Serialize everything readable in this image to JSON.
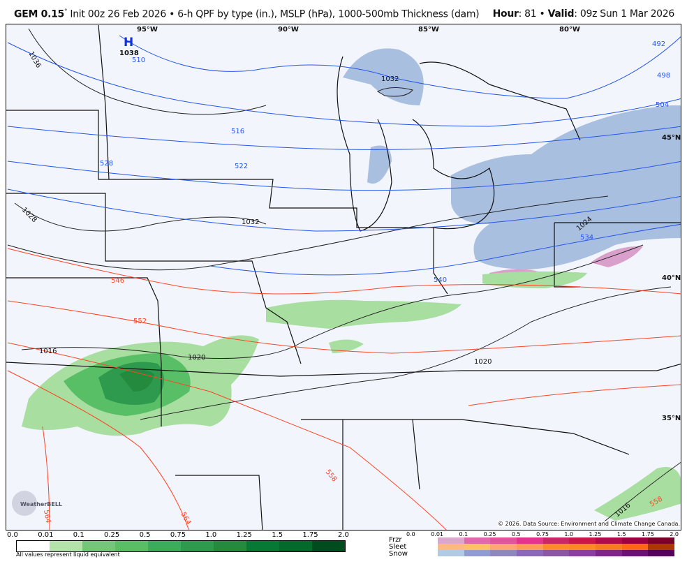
{
  "header": {
    "model": "GEM 0.15",
    "degree": "°",
    "description": "Init 00z 26 Feb 2026 • 6-h QPF by type (in.), MSLP (hPa), 1000-500mb Thickness (dam)",
    "hour_label": "Hour",
    "hour": ": 81 • ",
    "valid_label": "Valid",
    "valid": ": 09z Sun 1 Mar 2026"
  },
  "map": {
    "longitudes": [
      "95°W",
      "90°W",
      "85°W",
      "80°W"
    ],
    "latitudes": [
      "45°N",
      "40°N",
      "35°N"
    ],
    "high": {
      "symbol": "H",
      "value": "1038"
    },
    "isobars": [
      "1036",
      "1032",
      "1032",
      "1028",
      "1024",
      "1020",
      "1020",
      "1016",
      "1016"
    ],
    "thickness": [
      "492",
      "498",
      "504",
      "510",
      "516",
      "522",
      "528",
      "534",
      "540",
      "546",
      "552",
      "558",
      "558",
      "564",
      "564"
    ],
    "colors": {
      "isobar": "#111111",
      "thickness_cold": "#2255ee",
      "thickness_warm": "#ff4422",
      "rain": "#8fd48a",
      "snow": "#a9bfe0",
      "frzr": "#d9a0cc",
      "background": "#f3f5fd"
    },
    "copyright": "© 2026. Data Source: Environment and Climate Change Canada.",
    "logo": "WeatherBELL"
  },
  "qpf_legend": {
    "ticks": [
      "0.0",
      "0.01",
      "0.1",
      "0.25",
      "0.5",
      "0.75",
      "1.0",
      "1.25",
      "1.5",
      "1.75",
      "2.0"
    ],
    "colors": [
      "#ffffff",
      "#b3e3aa",
      "#74c77a",
      "#58bf67",
      "#3aac5b",
      "#2e9a4e",
      "#248a3d",
      "#067a34",
      "#046a2b",
      "#014c1e"
    ],
    "note": "All values represent liquid equivalent"
  },
  "type_legend": {
    "ticks": [
      "0.0",
      "0.01",
      "0.1",
      "0.25",
      "0.5",
      "0.75",
      "1.0",
      "1.25",
      "1.5",
      "1.75",
      "2.0"
    ],
    "rows": [
      {
        "label": "Frzr",
        "colors": [
          "#dba7cc",
          "#df68ae",
          "#e3529d",
          "#e6328f",
          "#cb2668",
          "#cc1549",
          "#b00b4c",
          "#9d0040",
          "#7b0029"
        ]
      },
      {
        "label": "Sleet",
        "colors": [
          "#fdb97f",
          "#fec166",
          "#fda578",
          "#fb9b57",
          "#fc8b2d",
          "#fd8926",
          "#f57c22",
          "#fe6717",
          "#ad3700"
        ]
      },
      {
        "label": "Snow",
        "colors": [
          "#b2cbe4",
          "#919dce",
          "#8e88bb",
          "#8b69b8",
          "#8c56a7",
          "#8b3da1",
          "#7f2589",
          "#6b1176",
          "#55005a"
        ]
      }
    ]
  }
}
